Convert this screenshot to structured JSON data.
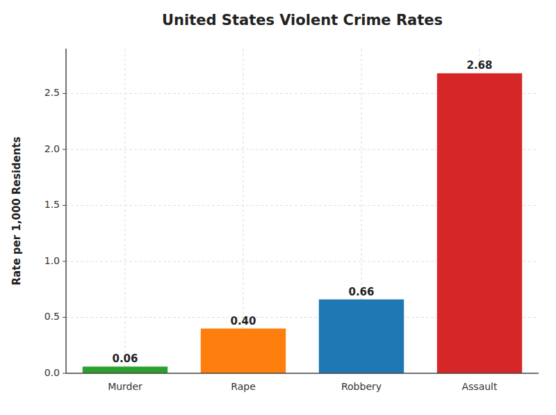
{
  "chart_data": {
    "type": "bar",
    "title": "United States Violent Crime Rates",
    "categories": [
      "Murder",
      "Rape",
      "Robbery",
      "Assault"
    ],
    "values": [
      0.06,
      0.4,
      0.66,
      2.68
    ],
    "value_labels": [
      "0.06",
      "0.40",
      "0.66",
      "2.68"
    ],
    "colors": [
      "#2ca02c",
      "#ff7f0e",
      "#1f77b4",
      "#d62728"
    ],
    "ylabel": "Rate per 1,000 Residents",
    "ylim": [
      0,
      2.9
    ],
    "yticks": [
      {
        "value": 0.0,
        "label": "0.0"
      },
      0.5,
      {
        "value": 1.0,
        "label": "1.0"
      },
      1.5,
      {
        "value": 2.0,
        "label": "2.0"
      },
      2.5
    ],
    "grid": true,
    "data_labels": true
  }
}
